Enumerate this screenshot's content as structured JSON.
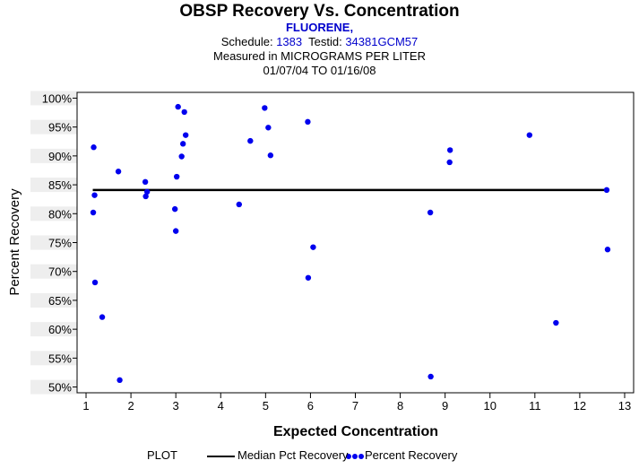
{
  "header": {
    "title": "OBSP Recovery Vs. Concentration",
    "subtitle": "FLUORENE,",
    "schedule_label": "Schedule:",
    "schedule_value": "1383",
    "testid_label": "Testid:",
    "testid_value": "34381GCM57",
    "measured": "Measured in  MICROGRAMS PER LITER",
    "date_range": "01/07/04 TO 01/16/08"
  },
  "legend": {
    "title": "PLOT",
    "median_label": "Median Pct Recovery",
    "points_label": "Percent Recovery"
  },
  "colors": {
    "points": "#0000ee",
    "median_line": "#000000",
    "header_accent": "#0000cc"
  },
  "chart_data": {
    "type": "scatter",
    "title": "OBSP Recovery Vs. Concentration",
    "xlabel": "Expected Concentration",
    "ylabel": "Percent Recovery",
    "xlim": [
      0.8,
      13.2
    ],
    "ylim": [
      49,
      101
    ],
    "x_ticks": [
      "1",
      "2",
      "3",
      "4",
      "5",
      "6",
      "7",
      "8",
      "9",
      "10",
      "11",
      "12",
      "13"
    ],
    "y_ticks": [
      "50%",
      "55%",
      "60%",
      "65%",
      "70%",
      "75%",
      "80%",
      "85%",
      "90%",
      "95%",
      "100%"
    ],
    "median": {
      "name": "Median Pct Recovery",
      "x_start": 1.15,
      "x_end": 12.6,
      "value": 84.1
    },
    "series": [
      {
        "name": "Percent Recovery",
        "points": [
          [
            1.17,
            91.5
          ],
          [
            1.19,
            83.2
          ],
          [
            1.16,
            80.2
          ],
          [
            1.2,
            68.1
          ],
          [
            1.36,
            62.1
          ],
          [
            1.72,
            87.3
          ],
          [
            1.75,
            51.2
          ],
          [
            2.32,
            85.5
          ],
          [
            2.33,
            83.0
          ],
          [
            2.36,
            83.8
          ],
          [
            2.98,
            80.8
          ],
          [
            3.0,
            77.0
          ],
          [
            3.02,
            86.4
          ],
          [
            3.05,
            98.5
          ],
          [
            3.13,
            89.9
          ],
          [
            3.16,
            92.1
          ],
          [
            3.19,
            97.6
          ],
          [
            3.22,
            93.6
          ],
          [
            4.41,
            81.6
          ],
          [
            4.66,
            92.6
          ],
          [
            4.98,
            98.3
          ],
          [
            5.06,
            94.9
          ],
          [
            5.11,
            90.1
          ],
          [
            5.94,
            95.9
          ],
          [
            5.95,
            68.9
          ],
          [
            6.06,
            74.2
          ],
          [
            8.67,
            80.2
          ],
          [
            8.68,
            51.8
          ],
          [
            9.1,
            88.9
          ],
          [
            9.11,
            91.0
          ],
          [
            10.88,
            93.6
          ],
          [
            11.47,
            61.1
          ],
          [
            12.6,
            84.1
          ],
          [
            12.62,
            73.8
          ]
        ]
      }
    ]
  }
}
